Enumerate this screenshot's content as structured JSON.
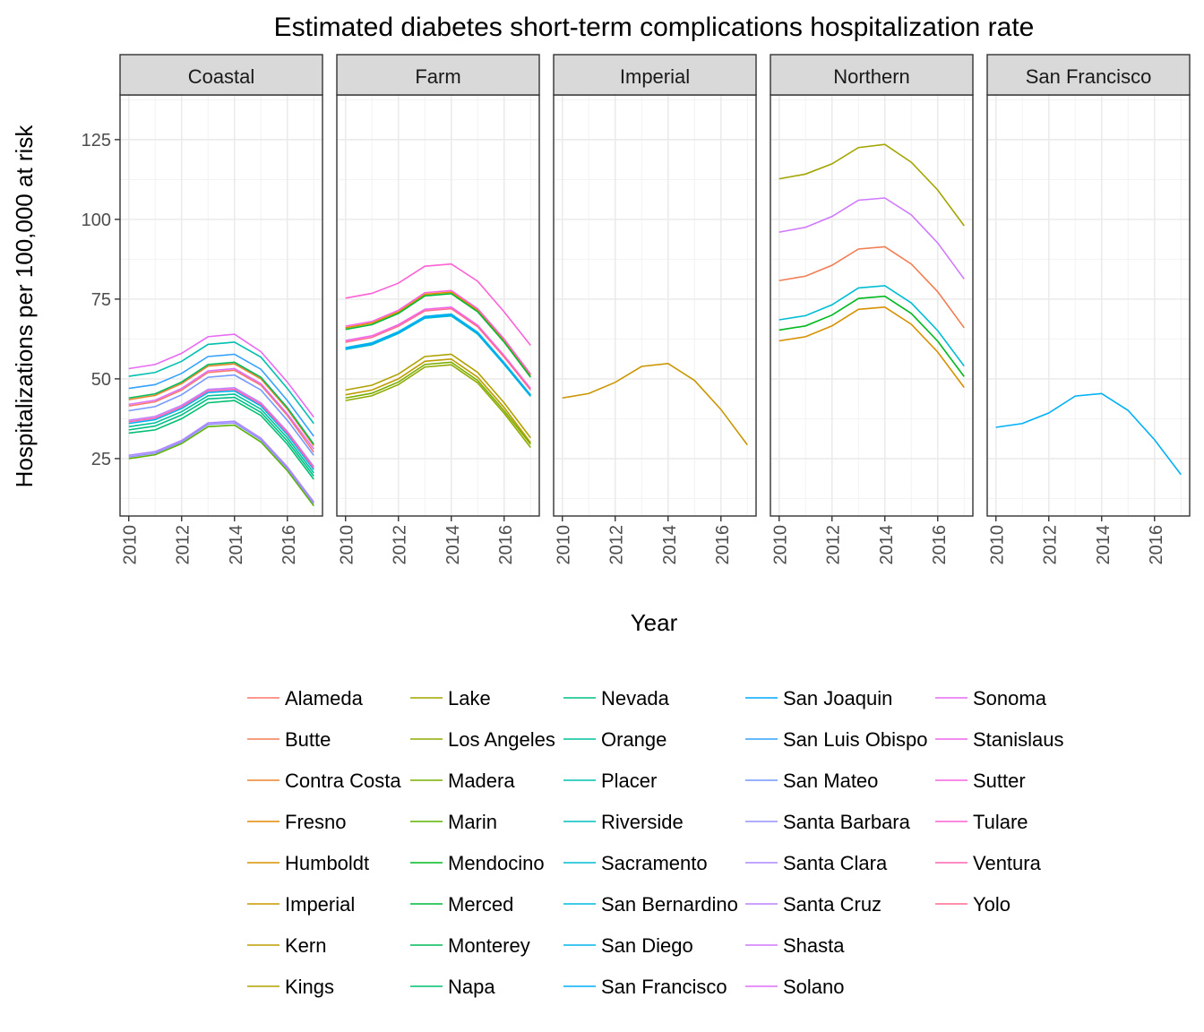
{
  "chart_data": {
    "type": "line",
    "title": "Estimated diabetes short-term complications hospitalization rate",
    "xlabel": "Year",
    "ylabel": "Hospitalizations per 100,000 at risk",
    "x": [
      2010,
      2011,
      2012,
      2013,
      2014,
      2015,
      2016,
      2017
    ],
    "xticks": [
      "2010",
      "2012",
      "2014",
      "2016"
    ],
    "ylim": [
      7,
      139
    ],
    "yticks": [
      "25",
      "50",
      "75",
      "100",
      "125"
    ],
    "grid": true,
    "legend_position": "bottom",
    "panels": [
      "Coastal",
      "Farm",
      "Imperial",
      "Northern",
      "San Francisco"
    ],
    "series": [
      {
        "name": "Alameda",
        "color": "#F8766D",
        "panel": "Coastal",
        "values": [
          41.5,
          42.8,
          46.5,
          52.0,
          52.7,
          48.0,
          38.5,
          27.0
        ]
      },
      {
        "name": "Butte",
        "color": "#F27D52",
        "panel": "Northern",
        "values": [
          80.8,
          82.2,
          85.6,
          90.7,
          91.4,
          86.0,
          77.3,
          66.0
        ]
      },
      {
        "name": "Contra Costa",
        "color": "#EA8331",
        "panel": "Coastal",
        "values": [
          43.5,
          44.8,
          48.5,
          54.0,
          54.7,
          50.0,
          40.5,
          29.0
        ]
      },
      {
        "name": "Fresno",
        "color": "#E18A00",
        "panel": "Farm",
        "values": [
          66.0,
          67.5,
          71.0,
          76.5,
          77.2,
          71.5,
          62.0,
          51.0
        ]
      },
      {
        "name": "Humboldt",
        "color": "#D89000",
        "panel": "Northern",
        "values": [
          61.9,
          63.2,
          66.6,
          71.8,
          72.5,
          67.1,
          58.4,
          47.3
        ]
      },
      {
        "name": "Imperial",
        "color": "#CB9600",
        "panel": "Imperial",
        "values": [
          44.0,
          45.4,
          48.9,
          53.9,
          54.8,
          49.5,
          40.4,
          29.3
        ]
      },
      {
        "name": "Kern",
        "color": "#BE9C00",
        "panel": "Farm",
        "values": [
          45.0,
          46.5,
          50.0,
          55.5,
          56.2,
          50.5,
          41.0,
          30.0
        ]
      },
      {
        "name": "Kings",
        "color": "#B0A100",
        "panel": "Farm",
        "values": [
          46.5,
          48.0,
          51.5,
          57.0,
          57.7,
          52.0,
          42.5,
          31.5
        ]
      },
      {
        "name": "Lake",
        "color": "#A3A500",
        "panel": "Northern",
        "values": [
          112.7,
          114.2,
          117.4,
          122.5,
          123.5,
          117.9,
          109.2,
          98.0
        ]
      },
      {
        "name": "Los Angeles",
        "color": "#8FAA00",
        "panel": "Farm",
        "values": [
          43.2,
          44.7,
          48.2,
          53.7,
          54.4,
          48.7,
          39.2,
          28.5
        ]
      },
      {
        "name": "Madera",
        "color": "#7AAE00",
        "panel": "Farm",
        "values": [
          44.0,
          45.5,
          49.0,
          54.5,
          55.2,
          49.5,
          40.0,
          29.5
        ]
      },
      {
        "name": "Marin",
        "color": "#5BB300",
        "panel": "Coastal",
        "values": [
          25.0,
          26.2,
          29.7,
          35.0,
          35.5,
          30.2,
          21.2,
          10.2
        ]
      },
      {
        "name": "Mendocino",
        "color": "#00B81F",
        "panel": "Northern",
        "values": [
          65.3,
          66.6,
          70.0,
          75.2,
          75.9,
          70.5,
          61.8,
          50.7
        ]
      },
      {
        "name": "Merced",
        "color": "#00BA38",
        "panel": "Farm",
        "values": [
          65.5,
          67.0,
          70.5,
          76.0,
          76.7,
          71.0,
          61.5,
          50.5
        ]
      },
      {
        "name": "Monterey",
        "color": "#00BC59",
        "panel": "Coastal",
        "values": [
          44.0,
          45.3,
          49.0,
          54.5,
          55.2,
          50.5,
          41.0,
          29.5
        ]
      },
      {
        "name": "Napa",
        "color": "#00BE71",
        "panel": "Coastal",
        "values": [
          33.0,
          34.0,
          37.5,
          42.5,
          43.2,
          38.5,
          29.5,
          18.5
        ]
      },
      {
        "name": "Nevada",
        "color": "#00BF87",
        "panel": "Coastal",
        "values": [
          34.0,
          35.2,
          38.7,
          43.7,
          44.2,
          39.5,
          30.5,
          19.5
        ]
      },
      {
        "name": "Orange",
        "color": "#00C09B",
        "panel": "Coastal",
        "values": [
          35.0,
          36.2,
          39.7,
          44.7,
          45.2,
          40.5,
          31.5,
          20.5
        ]
      },
      {
        "name": "Placer",
        "color": "#00C0AF",
        "panel": "Coastal",
        "values": [
          50.8,
          52.0,
          55.5,
          60.8,
          61.5,
          56.8,
          47.0,
          36.0
        ]
      },
      {
        "name": "Riverside",
        "color": "#00BFC2",
        "panel": "Farm",
        "values": [
          59.2,
          60.7,
          64.2,
          69.0,
          69.7,
          64.0,
          54.5,
          44.5
        ]
      },
      {
        "name": "Sacramento",
        "color": "#00BDD4",
        "panel": "Northern",
        "values": [
          68.5,
          69.8,
          73.2,
          78.5,
          79.2,
          73.8,
          65.1,
          54.0
        ]
      },
      {
        "name": "San Bernardino",
        "color": "#00BAE0",
        "panel": "Farm",
        "values": [
          59.8,
          61.3,
          64.8,
          69.6,
          70.3,
          64.6,
          55.1,
          45.0
        ]
      },
      {
        "name": "San Diego",
        "color": "#00B5EE",
        "panel": "Coastal",
        "values": [
          36.0,
          37.2,
          40.7,
          45.7,
          46.2,
          41.5,
          32.5,
          21.5
        ]
      },
      {
        "name": "San Francisco",
        "color": "#00B0F6",
        "panel": "San Francisco",
        "values": [
          34.8,
          36.0,
          39.3,
          44.6,
          45.4,
          40.1,
          30.9,
          20.0
        ]
      },
      {
        "name": "San Joaquin",
        "color": "#00A9FF",
        "panel": "Farm",
        "values": [
          59.5,
          61.0,
          64.5,
          69.3,
          70.0,
          64.3,
          54.8,
          44.8
        ]
      },
      {
        "name": "San Luis Obispo",
        "color": "#35A2FF",
        "panel": "Coastal",
        "values": [
          47.0,
          48.2,
          51.7,
          57.0,
          57.7,
          53.0,
          43.2,
          32.0
        ]
      },
      {
        "name": "San Mateo",
        "color": "#7499FF",
        "panel": "Coastal",
        "values": [
          40.0,
          41.3,
          45.0,
          50.5,
          51.2,
          46.5,
          37.0,
          26.0
        ]
      },
      {
        "name": "Santa Barbara",
        "color": "#9590FF",
        "panel": "Coastal",
        "values": [
          25.5,
          26.7,
          30.2,
          35.7,
          36.2,
          30.9,
          21.9,
          10.9
        ]
      },
      {
        "name": "Santa Clara",
        "color": "#AC88FF",
        "panel": "Coastal",
        "values": [
          26.0,
          27.2,
          30.7,
          36.2,
          36.7,
          31.4,
          22.4,
          11.4
        ]
      },
      {
        "name": "Santa Cruz",
        "color": "#BF80FF",
        "panel": "Coastal",
        "values": [
          37.0,
          38.2,
          41.7,
          46.7,
          47.2,
          42.5,
          33.5,
          22.5
        ]
      },
      {
        "name": "Shasta",
        "color": "#D078FF",
        "panel": "Northern",
        "values": [
          96.0,
          97.5,
          100.9,
          106.0,
          106.7,
          101.4,
          92.6,
          81.3
        ]
      },
      {
        "name": "Solano",
        "color": "#DF70F8",
        "panel": "Coastal",
        "values": [
          42.0,
          43.3,
          47.0,
          52.5,
          53.2,
          48.5,
          39.0,
          28.0
        ]
      },
      {
        "name": "Sonoma",
        "color": "#E76BF3",
        "panel": "Coastal",
        "values": [
          53.2,
          54.5,
          58.0,
          63.2,
          64.0,
          58.5,
          49.0,
          38.0
        ]
      },
      {
        "name": "Stanislaus",
        "color": "#F066EA",
        "panel": "Farm",
        "values": [
          62.0,
          63.5,
          67.0,
          71.8,
          72.5,
          66.8,
          57.3,
          47.0
        ]
      },
      {
        "name": "Sutter",
        "color": "#F763E0",
        "panel": "Farm",
        "values": [
          66.5,
          68.0,
          71.5,
          77.0,
          77.7,
          72.0,
          62.5,
          51.5
        ]
      },
      {
        "name": "Tulare",
        "color": "#FC61D5",
        "panel": "Farm",
        "values": [
          75.3,
          76.8,
          80.0,
          85.3,
          86.0,
          80.6,
          71.0,
          60.5
        ]
      },
      {
        "name": "Ventura",
        "color": "#FF64B0",
        "panel": "Coastal",
        "values": [
          36.5,
          37.7,
          41.2,
          46.2,
          46.7,
          42.0,
          33.0,
          22.0
        ]
      },
      {
        "name": "Yolo",
        "color": "#FF6C91",
        "panel": "Farm",
        "values": [
          61.5,
          63.0,
          66.5,
          71.3,
          72.0,
          66.3,
          56.8,
          46.5
        ]
      }
    ]
  }
}
